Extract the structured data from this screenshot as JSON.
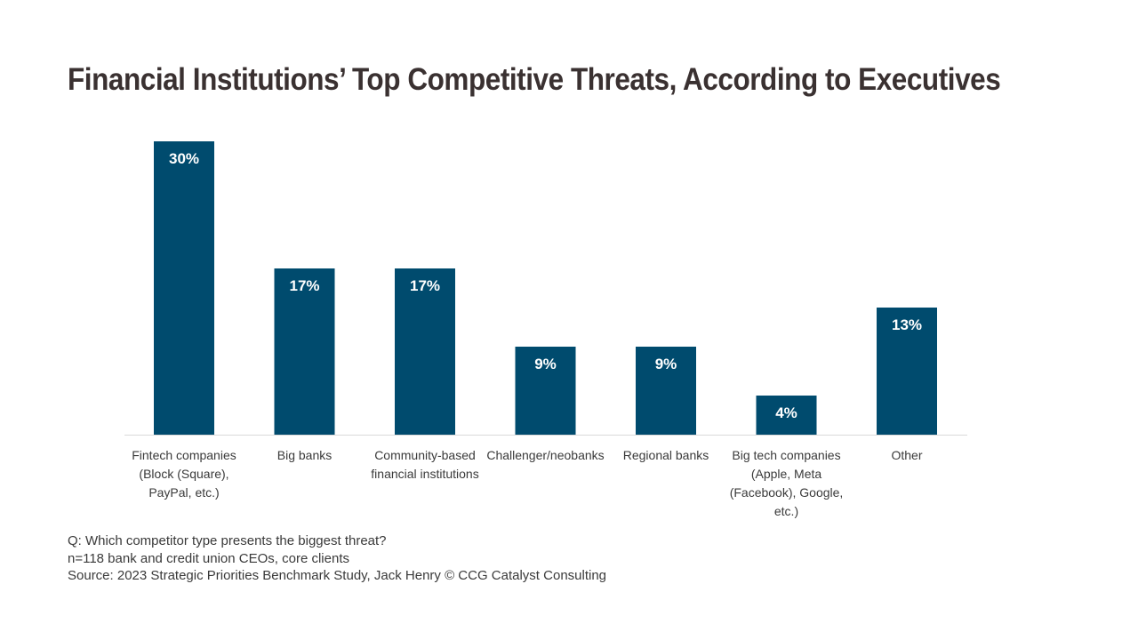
{
  "chart_data": {
    "type": "bar",
    "title": "Financial Institutions’ Top Competitive Threats, According to Executives",
    "xlabel": "",
    "ylabel": "",
    "ylim": [
      0,
      30
    ],
    "grid": false,
    "legend": "none",
    "bar_color": "#004b6e",
    "categories": [
      [
        "Fintech companies",
        "(Block (Square),",
        "PayPal, etc.)"
      ],
      [
        "Big banks"
      ],
      [
        "Community-based",
        "financial institutions"
      ],
      [
        "Challenger/neobanks"
      ],
      [
        "Regional banks"
      ],
      [
        "Big tech companies",
        "(Apple, Meta",
        "(Facebook), Google,",
        "etc.)"
      ],
      [
        "Other"
      ]
    ],
    "values": [
      30,
      17,
      17,
      9,
      9,
      4,
      13
    ],
    "data_labels": [
      "30%",
      "17%",
      "17%",
      "9%",
      "9%",
      "4%",
      "13%"
    ]
  },
  "notes": {
    "question": "Q: Which competitor type presents the biggest threat?",
    "sample": "n=118 bank and credit union CEOs, core clients",
    "source": "Source: 2023 Strategic Priorities Benchmark Study, Jack Henry © CCG Catalyst Consulting"
  }
}
